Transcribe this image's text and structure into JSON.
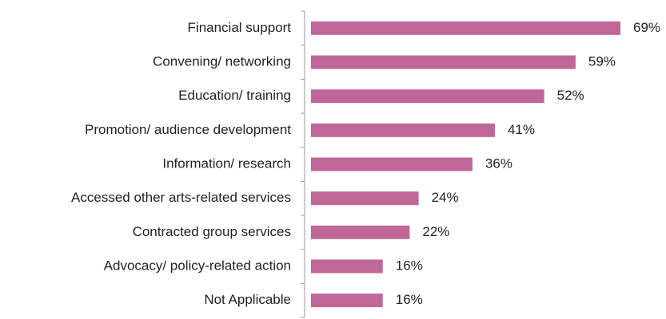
{
  "chart_data": {
    "type": "bar",
    "orientation": "horizontal",
    "categories": [
      "Financial support",
      "Convening/ networking",
      "Education/ training",
      "Promotion/ audience development",
      "Information/ research",
      "Accessed other arts-related services",
      "Contracted group services",
      "Advocacy/ policy-related action",
      "Not Applicable"
    ],
    "values": [
      69,
      59,
      52,
      41,
      36,
      24,
      22,
      16,
      16
    ],
    "value_labels": [
      "69%",
      "59%",
      "52%",
      "41%",
      "36%",
      "24%",
      "22%",
      "16%",
      "16%"
    ],
    "color": "#c0679a",
    "xlim": [
      0,
      70
    ]
  }
}
